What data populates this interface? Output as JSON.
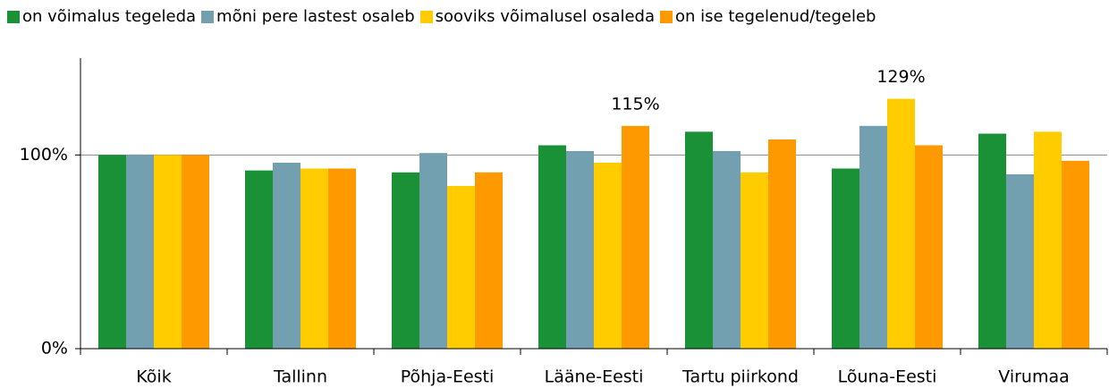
{
  "chart_data": {
    "type": "bar",
    "categories": [
      "Kõik",
      "Tallinn",
      "Põhja-Eesti",
      "Lääne-Eesti",
      "Tartu piirkond",
      "Lõuna-Eesti",
      "Virumaa"
    ],
    "series": [
      {
        "name": "on võimalus tegeleda",
        "color": "#1a9037",
        "values": [
          100,
          92,
          91,
          105,
          112,
          93,
          111
        ]
      },
      {
        "name": "mõni pere lastest osaleb",
        "color": "#72a0b0",
        "values": [
          100,
          96,
          101,
          102,
          102,
          115,
          90
        ]
      },
      {
        "name": "sooviks võimalusel osaleda",
        "color": "#ffcc00",
        "values": [
          100,
          93,
          84,
          96,
          91,
          129,
          112
        ],
        "value_labels": [
          null,
          null,
          null,
          null,
          null,
          "129%",
          null
        ]
      },
      {
        "name": "on ise tegelenud/tegeleb",
        "color": "#ff9900",
        "values": [
          100,
          93,
          91,
          115,
          108,
          105,
          97
        ],
        "value_labels": [
          null,
          null,
          null,
          "115%",
          null,
          null,
          null
        ]
      }
    ],
    "ylim": [
      0,
      150
    ],
    "yticks": [
      {
        "value": 0,
        "label": "0%"
      },
      {
        "value": 100,
        "label": "100%"
      }
    ],
    "grid": true,
    "legend": "top"
  }
}
